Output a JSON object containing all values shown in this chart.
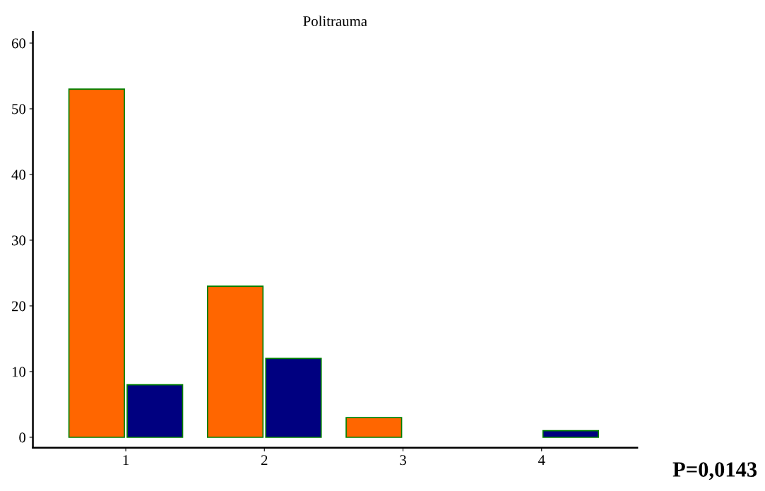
{
  "chart_data": {
    "type": "bar",
    "title": "Politrauma",
    "categories": [
      "1",
      "2",
      "3",
      "4"
    ],
    "series": [
      {
        "color": "#ff6600",
        "values": [
          53,
          23,
          3,
          null
        ]
      },
      {
        "color": "#000080",
        "values": [
          8,
          12,
          null,
          1
        ]
      }
    ],
    "ylim": [
      -1.6,
      61.7
    ],
    "yticks": [
      0,
      10,
      20,
      30,
      40,
      50,
      60
    ],
    "grid": false,
    "legend": false,
    "annotations": [
      "P=0,0143"
    ]
  }
}
